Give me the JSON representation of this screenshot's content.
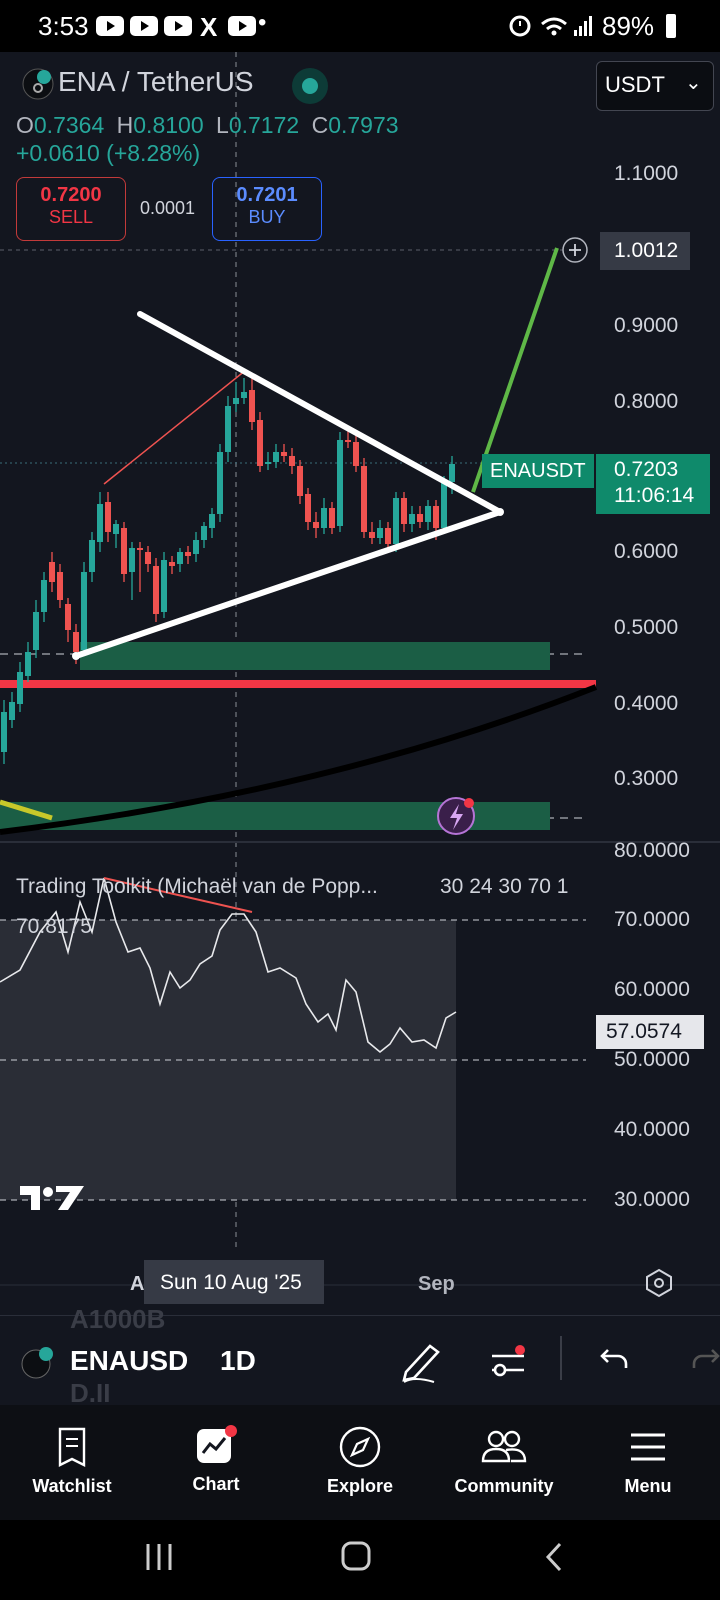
{
  "status": {
    "time": "3:53",
    "battery": "89%",
    "notif_icons": [
      "youtube-icon",
      "youtube-icon",
      "youtube-icon",
      "x-icon",
      "youtube-icon"
    ]
  },
  "header": {
    "symbol": "ENA / TetherUS",
    "currency": "USDT",
    "ohlc": {
      "o_label": "O",
      "o": "0.7364",
      "h_label": "H",
      "h": "0.8100",
      "l_label": "L",
      "l": "0.7172",
      "c_label": "C",
      "c": "0.7973"
    },
    "change": "+0.0610 (+8.28%)",
    "sell_price": "0.7200",
    "sell_label": "SELL",
    "spread": "0.0001",
    "buy_price": "0.7201",
    "buy_label": "BUY"
  },
  "price_axis": [
    "1.1000",
    "0.9000",
    "0.8000",
    "0.6000",
    "0.5000",
    "0.4000",
    "0.3000"
  ],
  "crosshair_price": "1.0012",
  "ticker_tag": {
    "symbol": "ENAUSDT",
    "price": "0.7203",
    "countdown": "11:06:14"
  },
  "indicator": {
    "title": "Trading Toolkit (Michaël van de Popp...",
    "params": "30 24 30 70 1",
    "peak_value": "70.8175",
    "current_value": "57.0574",
    "axis": [
      "80.0000",
      "70.0000",
      "60.0000",
      "50.0000",
      "40.0000",
      "30.0000"
    ]
  },
  "time_axis": {
    "left_partial": "A",
    "crosshair_date": "Sun 10 Aug '25",
    "sep": "Sep"
  },
  "bottom": {
    "symbol": "ENAUSD",
    "interval": "1D",
    "ghost_top": "A1000B",
    "ghost_bottom": "D.II"
  },
  "nav": [
    {
      "label": "Watchlist",
      "icon": "watchlist-icon"
    },
    {
      "label": "Chart",
      "icon": "chart-icon"
    },
    {
      "label": "Explore",
      "icon": "compass-icon"
    },
    {
      "label": "Community",
      "icon": "community-icon"
    },
    {
      "label": "Menu",
      "icon": "menu-icon"
    }
  ],
  "colors": {
    "up": "#26a69a",
    "down": "#ef5350",
    "bg": "#13161f",
    "accent_green": "#0f8a6b",
    "support_red": "#f23645",
    "zone": "#1b5e45"
  }
}
